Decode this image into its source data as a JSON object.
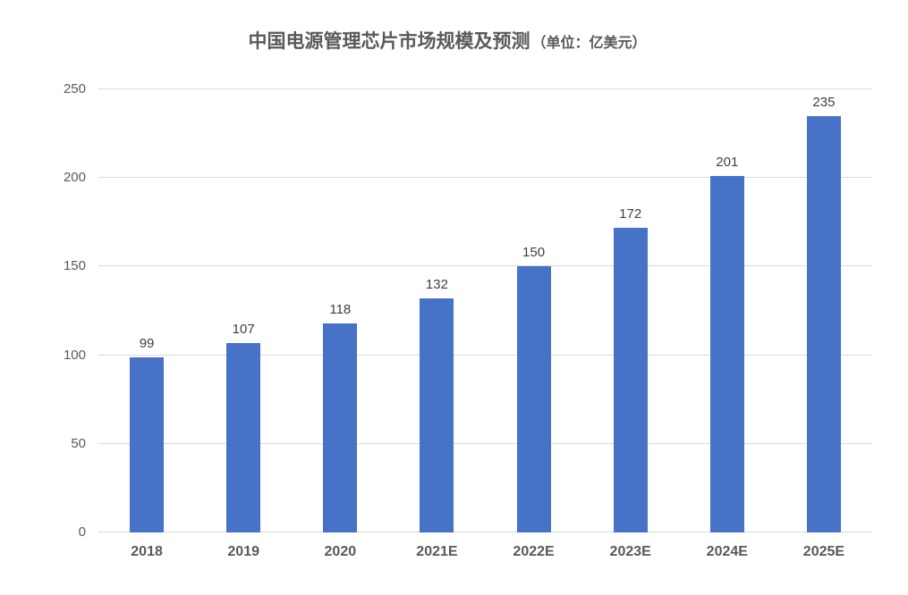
{
  "title": {
    "main": "中国电源管理芯片市场规模及预测",
    "unit": "（单位：亿美元）"
  },
  "chart_data": {
    "type": "bar",
    "title": "中国电源管理芯片市场规模及预测（单位：亿美元）",
    "categories": [
      "2018",
      "2019",
      "2020",
      "2021E",
      "2022E",
      "2023E",
      "2024E",
      "2025E"
    ],
    "values": [
      99,
      107,
      118,
      132,
      150,
      172,
      201,
      235
    ],
    "data_labels_shown": true,
    "xlabel": "",
    "ylabel": "",
    "ylim": [
      0,
      250
    ],
    "yticks": [
      0,
      50,
      100,
      150,
      200,
      250
    ],
    "grid": true,
    "legend": false
  },
  "colors": {
    "bar": "#4673C8",
    "gridline": "#d9d9d9",
    "title_text": "#595959",
    "axis_text": "#595959",
    "data_label_text": "#404040",
    "background": "#ffffff"
  }
}
